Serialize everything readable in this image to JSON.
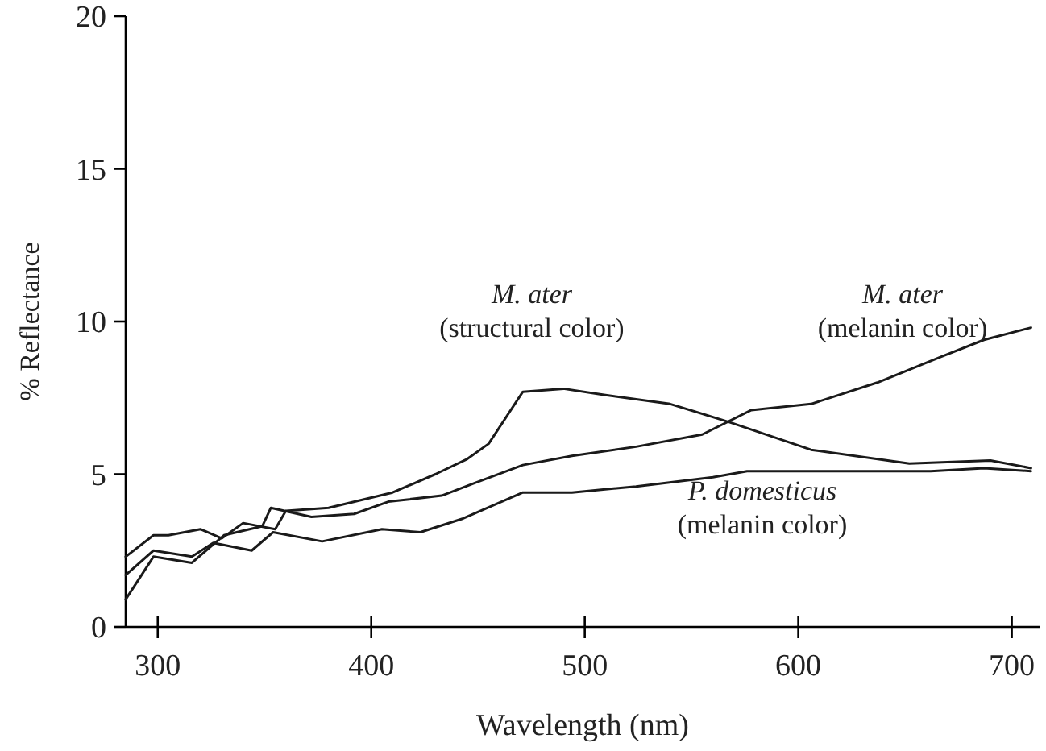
{
  "chart_data": {
    "type": "line",
    "xlabel": "Wavelength (nm)",
    "ylabel": "% Reflectance",
    "xlim": [
      285,
      713
    ],
    "xticks": [
      300,
      400,
      500,
      600,
      700
    ],
    "ylim": [
      0,
      20
    ],
    "yticks": [
      0,
      5,
      10,
      15,
      20
    ],
    "grid": false,
    "marker": "none",
    "line_style": "solid",
    "series": [
      {
        "name": "M. ater\n(structural color)",
        "color": "#1a1a1a",
        "x": [
          285,
          298,
          305,
          320,
          330,
          340,
          355,
          360,
          380,
          410,
          430,
          445,
          455,
          471,
          490,
          509,
          540,
          568,
          606,
          652,
          690,
          709
        ],
        "values": [
          2.3,
          3.0,
          3.0,
          3.2,
          2.9,
          3.4,
          3.2,
          3.8,
          3.9,
          4.4,
          5.0,
          5.5,
          6.0,
          7.7,
          7.8,
          7.6,
          7.3,
          6.7,
          5.8,
          5.35,
          5.45,
          5.2
        ]
      },
      {
        "name": "M. ater\n(melanin color)",
        "color": "#1a1a1a",
        "x": [
          285,
          298,
          316,
          331,
          349,
          353,
          372,
          392,
          408,
          433,
          448,
          471,
          494,
          524,
          555,
          578,
          606,
          637,
          667,
          687,
          709
        ],
        "values": [
          0.9,
          2.3,
          2.1,
          3.0,
          3.3,
          3.9,
          3.6,
          3.7,
          4.1,
          4.3,
          4.7,
          5.3,
          5.6,
          5.9,
          6.3,
          7.1,
          7.3,
          8.0,
          8.85,
          9.4,
          9.8
        ]
      },
      {
        "name": "P. domesticus\n(melanin color)",
        "color": "#1a1a1a",
        "x": [
          285,
          298,
          316,
          326,
          344,
          354,
          377,
          405,
          423,
          443,
          471,
          494,
          524,
          560,
          576,
          611,
          662,
          687,
          709
        ],
        "values": [
          1.7,
          2.5,
          2.3,
          2.75,
          2.5,
          3.1,
          2.8,
          3.2,
          3.1,
          3.55,
          4.4,
          4.4,
          4.6,
          4.9,
          5.1,
          5.1,
          5.1,
          5.2,
          5.1
        ]
      }
    ]
  }
}
